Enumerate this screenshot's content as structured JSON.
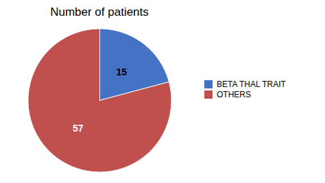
{
  "chart_data": {
    "type": "pie",
    "title": "Number of patients",
    "categories": [
      "BETA THAL TRAIT",
      "OTHERS"
    ],
    "values": [
      15,
      57
    ],
    "colors": [
      "#4472C4",
      "#C0504D"
    ],
    "data_labels": true,
    "legend": "right"
  }
}
